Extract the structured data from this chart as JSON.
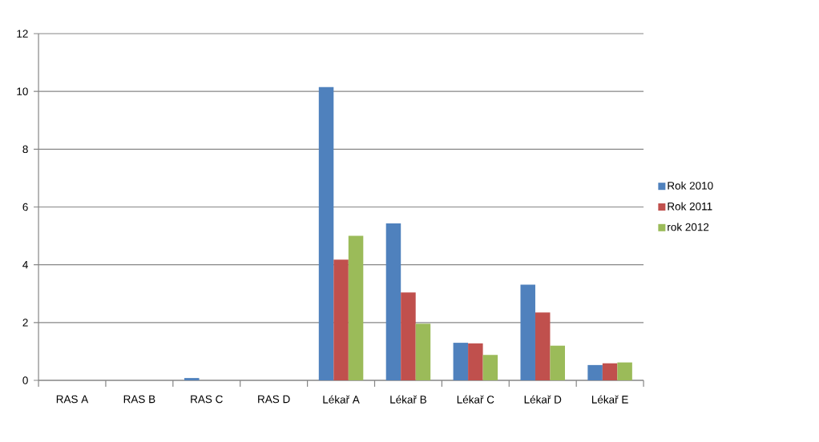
{
  "chart_data": {
    "type": "bar",
    "categories": [
      "RAS A",
      "RAS B",
      "RAS C",
      "RAS D",
      "Lékař A",
      "Lékař B",
      "Lékař C",
      "Lékař D",
      "Lékař E"
    ],
    "series": [
      {
        "name": "Rok 2010",
        "color": "#4f81bd",
        "values": [
          0,
          null,
          0.08,
          null,
          10.15,
          5.43,
          1.3,
          3.31,
          0.53
        ]
      },
      {
        "name": "Rok 2011",
        "color": "#c0504d",
        "values": [
          0,
          0,
          null,
          null,
          4.18,
          3.04,
          1.28,
          2.35,
          0.59
        ]
      },
      {
        "name": "rok 2012",
        "color": "#9bbb59",
        "values": [
          0,
          0,
          null,
          0,
          5.0,
          1.96,
          0.88,
          1.2,
          0.62
        ]
      }
    ],
    "ylim": [
      0,
      12
    ],
    "yticks": [
      0,
      2,
      4,
      6,
      8,
      10,
      12
    ],
    "grid": "y",
    "legend": "right"
  }
}
